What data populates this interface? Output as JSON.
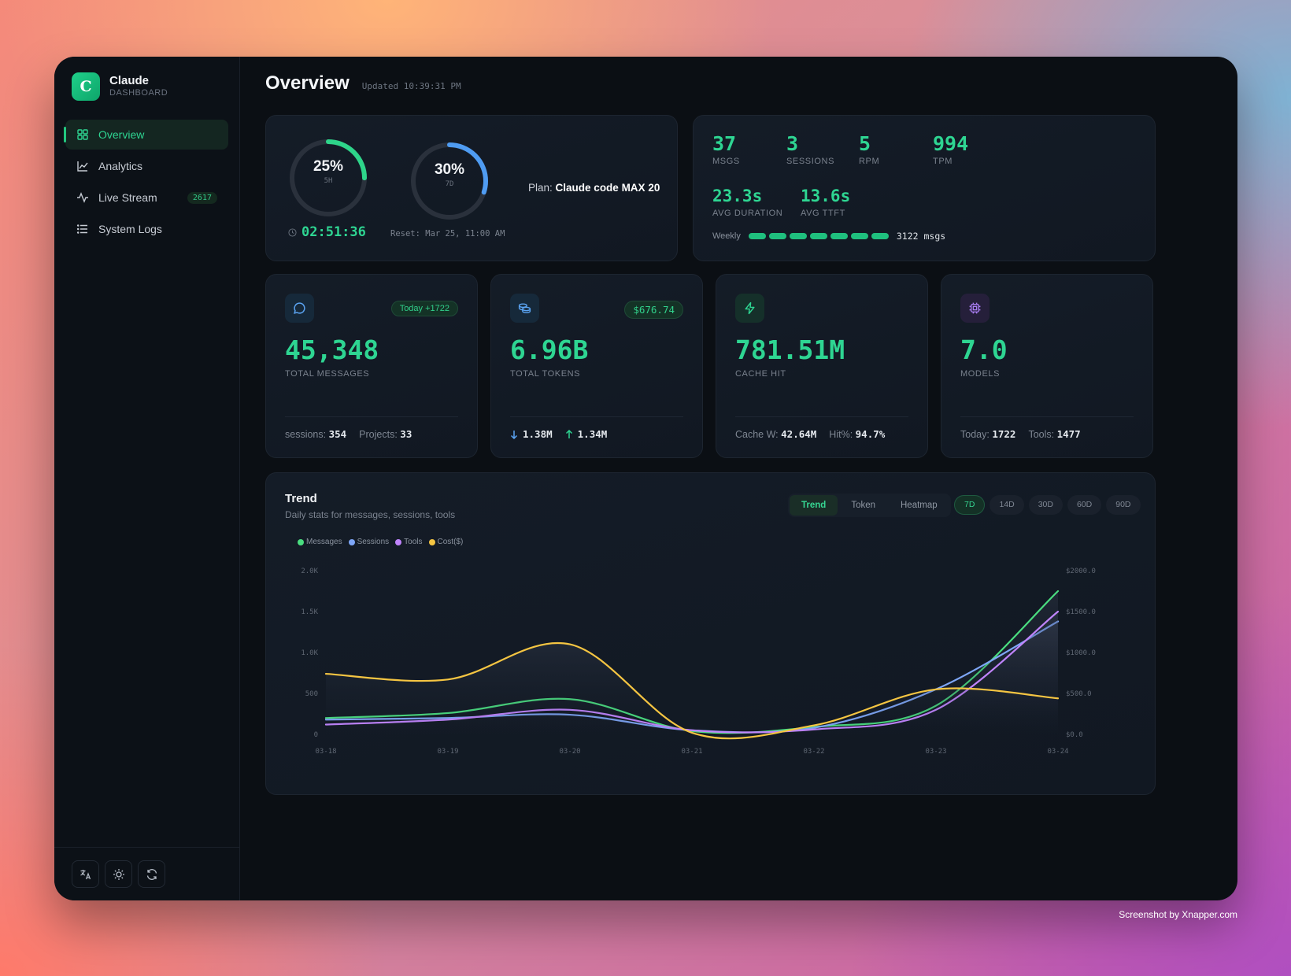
{
  "brand": {
    "logo_letter": "C",
    "name": "Claude",
    "subtitle": "DASHBOARD"
  },
  "nav": [
    {
      "label": "Overview",
      "icon": "grid-icon",
      "active": true
    },
    {
      "label": "Analytics",
      "icon": "line-chart-icon"
    },
    {
      "label": "Live Stream",
      "icon": "activity-icon",
      "badge": "2617"
    },
    {
      "label": "System Logs",
      "icon": "list-icon"
    }
  ],
  "footer_buttons": [
    "translate-icon",
    "sun-icon",
    "refresh-icon"
  ],
  "header": {
    "title": "Overview",
    "updated": "Updated 10:39:31 PM"
  },
  "usage": {
    "ring_5h": {
      "percent": 25,
      "label": "25%",
      "sublabel": "5H",
      "color": "#2ed58a"
    },
    "ring_7d": {
      "percent": 30,
      "label": "30%",
      "sublabel": "7D",
      "color": "#4f9cf2"
    },
    "timer": "02:51:36",
    "reset": "Reset: Mar 25, 11:00 AM",
    "plan_label": "Plan:",
    "plan_value": "Claude code MAX 20"
  },
  "live_stats": {
    "msgs": {
      "value": "37",
      "label": "MSGS"
    },
    "sessions": {
      "value": "3",
      "label": "SESSIONS"
    },
    "rpm": {
      "value": "5",
      "label": "RPM"
    },
    "tpm": {
      "value": "994",
      "label": "TPM"
    },
    "avg_duration": {
      "value": "23.3s",
      "label": "AVG DURATION"
    },
    "avg_ttft": {
      "value": "13.6s",
      "label": "AVG TTFT"
    },
    "weekly_label": "Weekly",
    "weekly_segments": 7,
    "weekly_value": "3122 msgs"
  },
  "metrics": {
    "messages": {
      "badge": "Today +1722",
      "value": "45,348",
      "label": "TOTAL MESSAGES",
      "foot1_label": "sessions:",
      "foot1_value": "354",
      "foot2_label": "Projects:",
      "foot2_value": "33"
    },
    "tokens": {
      "badge": "$676.74",
      "value": "6.96B",
      "label": "TOTAL TOKENS",
      "down": "1.38M",
      "up": "1.34M"
    },
    "cache": {
      "value": "781.51M",
      "label": "CACHE HIT",
      "foot1_label": "Cache W:",
      "foot1_value": "42.64M",
      "foot2_label": "Hit%:",
      "foot2_value": "94.7%"
    },
    "models": {
      "value": "7.0",
      "label": "MODELS",
      "foot1_label": "Today:",
      "foot1_value": "1722",
      "foot2_label": "Tools:",
      "foot2_value": "1477"
    }
  },
  "trend": {
    "title": "Trend",
    "subtitle": "Daily stats for messages, sessions, tools",
    "tabs": [
      "Trend",
      "Token",
      "Heatmap"
    ],
    "active_tab": "Trend",
    "ranges": [
      "7D",
      "14D",
      "30D",
      "60D",
      "90D"
    ],
    "active_range": "7D"
  },
  "chart_data": {
    "type": "line",
    "categories": [
      "03-18",
      "03-19",
      "03-20",
      "03-21",
      "03-22",
      "03-23",
      "03-24"
    ],
    "ylim": [
      0,
      2000
    ],
    "y_ticks": [
      "0",
      "500",
      "1.0K",
      "1.5K",
      "2.0K"
    ],
    "y2lim": [
      0,
      2000
    ],
    "y2_ticks": [
      "$0.0",
      "$500.0",
      "$1000.0",
      "$1500.0",
      "$2000.0"
    ],
    "series": [
      {
        "name": "Messages",
        "color": "#4ade80",
        "axis": "left",
        "values": [
          200,
          260,
          430,
          40,
          90,
          350,
          1750
        ]
      },
      {
        "name": "Sessions",
        "color": "#7ea6f7",
        "axis": "left",
        "values": [
          180,
          200,
          240,
          50,
          80,
          550,
          1380
        ]
      },
      {
        "name": "Tools",
        "color": "#c084fc",
        "axis": "left",
        "values": [
          120,
          180,
          300,
          50,
          60,
          300,
          1500
        ]
      },
      {
        "name": "Cost($)",
        "color": "#f5c542",
        "axis": "right",
        "values": [
          740,
          670,
          1100,
          20,
          110,
          550,
          440
        ]
      }
    ]
  },
  "credit": "Screenshot by Xnapper.com"
}
